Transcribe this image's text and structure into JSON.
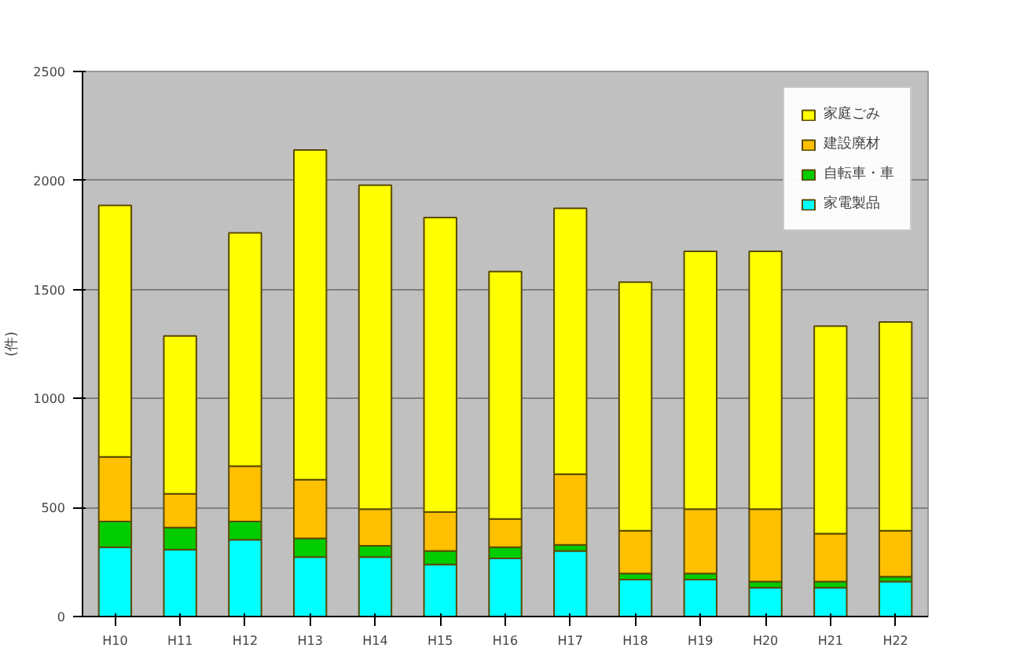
{
  "chart_data": {
    "type": "bar",
    "stacked": true,
    "ylabel": "(件)",
    "categories": [
      "H10",
      "H11",
      "H12",
      "H13",
      "H14",
      "H15",
      "H16",
      "H17",
      "H18",
      "H19",
      "H20",
      "H21",
      "H22"
    ],
    "series": [
      {
        "name": "家電製品",
        "color": "#00ffff",
        "values": [
          318,
          307,
          352,
          273,
          273,
          239,
          267,
          301,
          169,
          169,
          132,
          132,
          160
        ]
      },
      {
        "name": "自転車・車",
        "color": "#00cc00",
        "values": [
          118,
          101,
          84,
          85,
          51,
          62,
          51,
          28,
          28,
          28,
          28,
          28,
          23
        ]
      },
      {
        "name": "建設廃材",
        "color": "#ffc000",
        "values": [
          296,
          155,
          254,
          270,
          169,
          178,
          130,
          324,
          197,
          296,
          333,
          220,
          211
        ]
      },
      {
        "name": "家庭ごみ",
        "color": "#ffff00",
        "values": [
          1154,
          724,
          1070,
          1512,
          1486,
          1351,
          1134,
          1219,
          1140,
          1182,
          1182,
          952,
          957
        ]
      }
    ],
    "ylim": [
      0,
      2500
    ],
    "yticks": [
      0,
      500,
      1000,
      1500,
      2000,
      2500
    ],
    "grid": "y",
    "legend": "top right"
  }
}
